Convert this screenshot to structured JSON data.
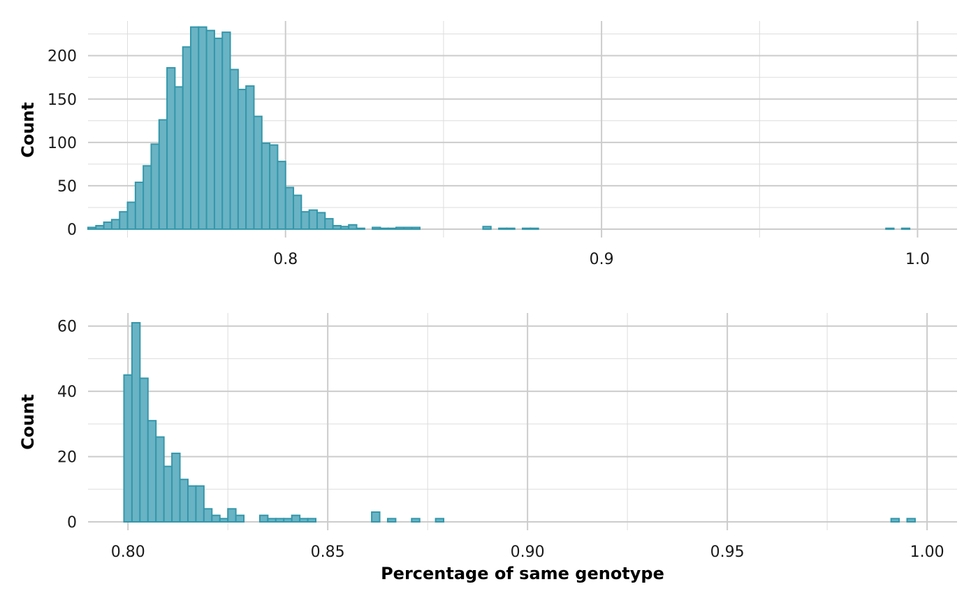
{
  "chart_data": [
    {
      "type": "bar",
      "subtype": "histogram",
      "ylabel": "Count",
      "xlabel": "",
      "xlim": [
        0.7375,
        1.0125
      ],
      "ylim": [
        0,
        240
      ],
      "x_ticks": [
        0.8,
        0.9,
        1.0
      ],
      "x_tick_labels": [
        "0.8",
        "0.9",
        "1.0"
      ],
      "x_minor_ticks": [
        0.75,
        0.85,
        0.95
      ],
      "y_ticks": [
        0,
        50,
        100,
        150,
        200
      ],
      "y_tick_labels": [
        "0",
        "50",
        "100",
        "150",
        "200"
      ],
      "y_minor_ticks": [
        25,
        75,
        125,
        175,
        225
      ],
      "grid": true,
      "legend": "none",
      "bin_start": 0.7375,
      "bin_width": 0.0025,
      "values": [
        2,
        4,
        8,
        11,
        20,
        31,
        54,
        73,
        98,
        126,
        186,
        164,
        210,
        233,
        233,
        229,
        220,
        227,
        184,
        161,
        165,
        130,
        99,
        97,
        78,
        48,
        39,
        20,
        22,
        19,
        12,
        4,
        3,
        5,
        1,
        0,
        2,
        1,
        1,
        2,
        2,
        2,
        0,
        0,
        0,
        0,
        0,
        0,
        0,
        0,
        3,
        0,
        1,
        1,
        0,
        1,
        1,
        0,
        0,
        0,
        0,
        0,
        0,
        0,
        0,
        0,
        0,
        0,
        0,
        0,
        0,
        0,
        0,
        0,
        0,
        0,
        0,
        0,
        0,
        0,
        0,
        0,
        0,
        0,
        0,
        0,
        0,
        0,
        0,
        0,
        0,
        0,
        0,
        0,
        0,
        0,
        0,
        0,
        0,
        0,
        0,
        1,
        0,
        1
      ],
      "fill_color": "#6ab3c4",
      "stroke_color": "#3497aa"
    },
    {
      "type": "bar",
      "subtype": "histogram",
      "ylabel": "Count",
      "xlabel": "Percentage of same genotype",
      "xlim": [
        0.79,
        1.0075
      ],
      "ylim": [
        0,
        64
      ],
      "x_ticks": [
        0.8,
        0.85,
        0.9,
        0.95,
        1.0
      ],
      "x_tick_labels": [
        "0.80",
        "0.85",
        "0.90",
        "0.95",
        "1.00"
      ],
      "x_minor_ticks": [
        0.825,
        0.875,
        0.925,
        0.975
      ],
      "y_ticks": [
        0,
        20,
        40,
        60
      ],
      "y_tick_labels": [
        "0",
        "20",
        "40",
        "60"
      ],
      "y_minor_ticks": [
        10,
        30,
        50
      ],
      "grid": true,
      "legend": "none",
      "bin_start": 0.799,
      "bin_width": 0.002,
      "values": [
        45,
        61,
        44,
        31,
        26,
        17,
        21,
        13,
        11,
        11,
        4,
        2,
        1,
        4,
        2,
        0,
        0,
        2,
        1,
        1,
        1,
        2,
        1,
        1,
        0,
        0,
        0,
        0,
        0,
        0,
        0,
        3,
        0,
        1,
        0,
        0,
        1,
        0,
        0,
        1,
        0,
        0,
        0,
        0,
        0,
        0,
        0,
        0,
        0,
        0,
        0,
        0,
        0,
        0,
        0,
        0,
        0,
        0,
        0,
        0,
        0,
        0,
        0,
        0,
        0,
        0,
        0,
        0,
        0,
        0,
        0,
        0,
        0,
        0,
        0,
        0,
        0,
        0,
        0,
        0,
        0,
        0,
        0,
        0,
        0,
        0,
        0,
        0,
        0,
        0,
        0,
        0,
        0,
        0,
        0,
        0,
        1,
        0,
        1
      ],
      "fill_color": "#6ab3c4",
      "stroke_color": "#3497aa"
    }
  ]
}
